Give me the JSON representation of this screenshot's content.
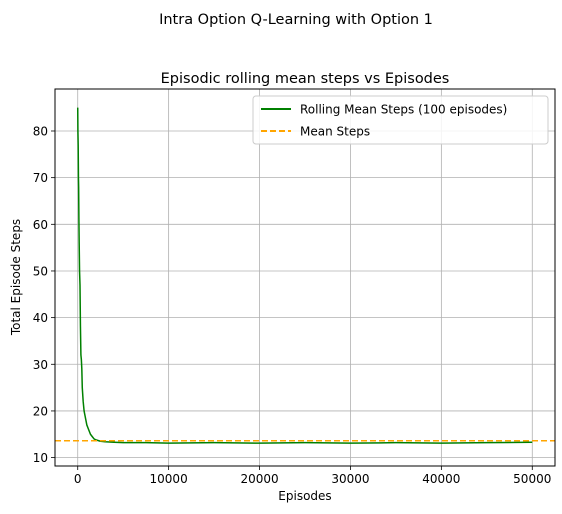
{
  "chart_data": {
    "type": "line",
    "suptitle": "Intra Option Q-Learning with Option 1",
    "title": "Episodic rolling mean steps vs Episodes",
    "xlabel": "Episodes",
    "ylabel": "Total Episode Steps",
    "xlim": [
      -2500,
      52500
    ],
    "ylim": [
      8.2,
      89
    ],
    "xticks": [
      0,
      10000,
      20000,
      30000,
      40000,
      50000
    ],
    "yticks": [
      10,
      20,
      30,
      40,
      50,
      60,
      70,
      80
    ],
    "grid": true,
    "legend_position": "top-right",
    "series": [
      {
        "name": "Rolling Mean Steps (100 episodes)",
        "color": "#008000",
        "style": "solid",
        "x": [
          0,
          20,
          50,
          80,
          100,
          130,
          160,
          200,
          250,
          300,
          350,
          400,
          450,
          500,
          600,
          700,
          800,
          900,
          1000,
          1200,
          1400,
          1600,
          1800,
          2000,
          2500,
          3000,
          4000,
          5000,
          7500,
          10000,
          15000,
          20000,
          25000,
          30000,
          35000,
          40000,
          45000,
          50000
        ],
        "y": [
          85,
          80,
          77,
          70,
          68,
          61,
          56,
          50,
          47,
          38,
          32,
          31,
          29,
          25,
          22,
          20,
          19,
          18,
          17,
          16,
          15,
          14.5,
          14,
          13.8,
          13.5,
          13.4,
          13.3,
          13.2,
          13.2,
          13.1,
          13.2,
          13.1,
          13.2,
          13.1,
          13.2,
          13.1,
          13.2,
          13.3
        ]
      },
      {
        "name": "Mean Steps",
        "color": "#ffa500",
        "style": "dashed",
        "y_const": 13.6
      }
    ]
  }
}
